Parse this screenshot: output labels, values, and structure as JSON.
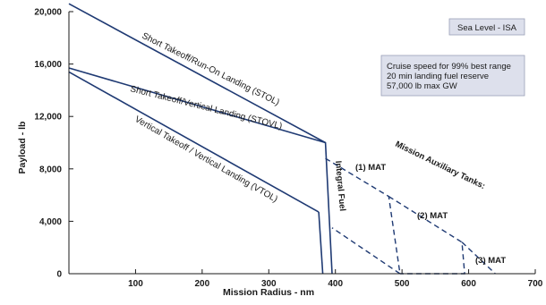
{
  "chart_data": {
    "type": "line",
    "xlabel": "Mission Radius - nm",
    "ylabel": "Payload - lb",
    "xlim": [
      0,
      700
    ],
    "ylim": [
      0,
      20000
    ],
    "x_ticks": [
      100,
      200,
      300,
      400,
      500,
      600,
      700
    ],
    "x_tick_labels": [
      "100",
      "200",
      "300",
      "400",
      "500",
      "600",
      "700"
    ],
    "y_ticks": [
      0,
      4000,
      8000,
      12000,
      16000,
      20000
    ],
    "y_tick_labels": [
      "0",
      "4,000",
      "8,000",
      "12,000",
      "16,000",
      "20,000"
    ],
    "grid": false,
    "series": [
      {
        "name": "Short Takeoff/Run-On Landing (STOL)",
        "style": "solid",
        "x": [
          0,
          385,
          395
        ],
        "y": [
          20600,
          10000,
          0
        ]
      },
      {
        "name": "Short Takeoff/Vertical Landing (STOVL)",
        "style": "solid",
        "x": [
          0,
          385
        ],
        "y": [
          15700,
          10000
        ]
      },
      {
        "name": "Vertical Takeoff / Vertical Landing (VTOL)",
        "style": "solid",
        "x": [
          0,
          375
        ],
        "y": [
          15400,
          4700
        ]
      },
      {
        "name": "",
        "style": "solid",
        "x": [
          375,
          381
        ],
        "y": [
          4700,
          0
        ]
      },
      {
        "name": "(1) MAT",
        "style": "dashed",
        "x": [
          385,
          480,
          497,
          395
        ],
        "y": [
          8800,
          5900,
          0,
          3500
        ]
      },
      {
        "name": "(2) MAT",
        "style": "dashed",
        "x": [
          480,
          590,
          594,
          497
        ],
        "y": [
          5900,
          2400,
          0,
          0
        ]
      },
      {
        "name": "(3) MAT",
        "style": "dashed",
        "x": [
          590,
          640
        ],
        "y": [
          2400,
          0
        ]
      }
    ],
    "annotations": {
      "integral_fuel": "Integral Fuel",
      "mission_aux_tanks": "Mission Auxiliary Tanks:",
      "mat1": "(1) MAT",
      "mat2": "(2) MAT",
      "mat3": "(3) MAT",
      "sea_level": "Sea Level - ISA",
      "conditions": [
        "Cruise speed for 99% best range",
        "20 min landing fuel reserve",
        "57,000 lb max GW"
      ]
    },
    "colors": {
      "curve": "#1f3a73",
      "axis": "#1a1a1a",
      "box_fill": "#dde0ec",
      "box_border": "#9aa0b8"
    }
  }
}
